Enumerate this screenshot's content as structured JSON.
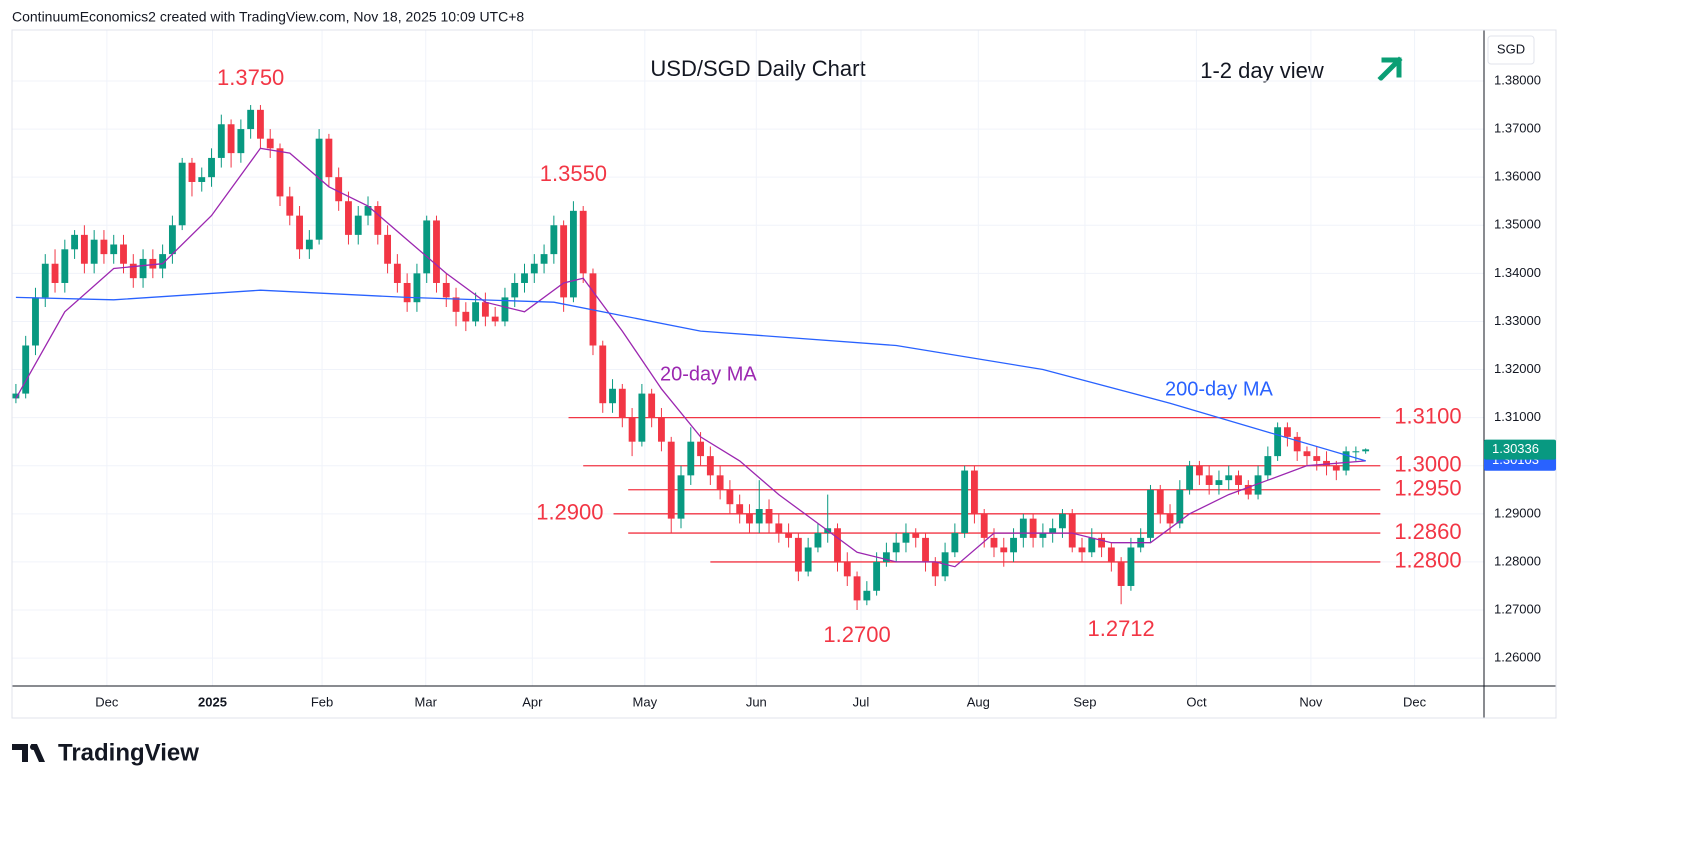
{
  "header": "ContinuumEconomics2 created with TradingView.com, Nov 18, 2025 10:09 UTC+8",
  "brand": "TradingView",
  "chart_data": {
    "type": "candlestick",
    "title": "USD/SGD Daily Chart",
    "subtitle": "1-2 day view",
    "currency": "SGD",
    "up_color": "#089981",
    "down_color": "#f23645",
    "xlim": [
      -0.4,
      150.1
    ],
    "xticks": [
      {
        "value": 9.3,
        "label": "Dec"
      },
      {
        "value": 20.1,
        "label": "2025"
      },
      {
        "value": 31.3,
        "label": "Feb"
      },
      {
        "value": 41.9,
        "label": "Mar"
      },
      {
        "value": 52.8,
        "label": "Apr"
      },
      {
        "value": 64.3,
        "label": "May"
      },
      {
        "value": 75.7,
        "label": "Jun"
      },
      {
        "value": 86.4,
        "label": "Jul"
      },
      {
        "value": 98.4,
        "label": "Aug"
      },
      {
        "value": 109.3,
        "label": "Sep"
      },
      {
        "value": 120.7,
        "label": "Oct"
      },
      {
        "value": 132.4,
        "label": "Nov"
      },
      {
        "value": 143.0,
        "label": "Dec"
      }
    ],
    "ylim": [
      1.2542,
      1.3906
    ],
    "yticks": [
      {
        "value": 1.26,
        "label": "1.26000"
      },
      {
        "value": 1.27,
        "label": "1.27000"
      },
      {
        "value": 1.28,
        "label": "1.28000"
      },
      {
        "value": 1.29,
        "label": "1.29000"
      },
      {
        "value": 1.3,
        "label": "1.30000"
      },
      {
        "value": 1.31,
        "label": "1.31000"
      },
      {
        "value": 1.32,
        "label": "1.32000"
      },
      {
        "value": 1.33,
        "label": "1.33000"
      },
      {
        "value": 1.34,
        "label": "1.34000"
      },
      {
        "value": 1.35,
        "label": "1.35000"
      },
      {
        "value": 1.36,
        "label": "1.36000"
      },
      {
        "value": 1.37,
        "label": "1.37000"
      },
      {
        "value": 1.38,
        "label": "1.38000"
      }
    ],
    "grid": true,
    "candles": [
      [
        1.314,
        1.317,
        1.313,
        1.315
      ],
      [
        1.315,
        1.327,
        1.314,
        1.325
      ],
      [
        1.325,
        1.337,
        1.323,
        1.335
      ],
      [
        1.335,
        1.344,
        1.333,
        1.342
      ],
      [
        1.342,
        1.345,
        1.336,
        1.338
      ],
      [
        1.338,
        1.347,
        1.336,
        1.345
      ],
      [
        1.345,
        1.349,
        1.343,
        1.348
      ],
      [
        1.348,
        1.35,
        1.34,
        1.342
      ],
      [
        1.342,
        1.349,
        1.34,
        1.347
      ],
      [
        1.347,
        1.349,
        1.342,
        1.344
      ],
      [
        1.344,
        1.348,
        1.342,
        1.346
      ],
      [
        1.346,
        1.348,
        1.34,
        1.342
      ],
      [
        1.342,
        1.344,
        1.337,
        1.339
      ],
      [
        1.339,
        1.345,
        1.337,
        1.343
      ],
      [
        1.343,
        1.345,
        1.339,
        1.341
      ],
      [
        1.341,
        1.346,
        1.339,
        1.344
      ],
      [
        1.344,
        1.352,
        1.342,
        1.35
      ],
      [
        1.35,
        1.364,
        1.349,
        1.363
      ],
      [
        1.363,
        1.364,
        1.356,
        1.359
      ],
      [
        1.359,
        1.362,
        1.357,
        1.36
      ],
      [
        1.36,
        1.366,
        1.358,
        1.364
      ],
      [
        1.364,
        1.373,
        1.362,
        1.371
      ],
      [
        1.371,
        1.372,
        1.362,
        1.365
      ],
      [
        1.365,
        1.372,
        1.363,
        1.37
      ],
      [
        1.37,
        1.375,
        1.368,
        1.374
      ],
      [
        1.374,
        1.375,
        1.366,
        1.368
      ],
      [
        1.368,
        1.37,
        1.364,
        1.366
      ],
      [
        1.366,
        1.367,
        1.354,
        1.356
      ],
      [
        1.356,
        1.358,
        1.35,
        1.352
      ],
      [
        1.352,
        1.354,
        1.343,
        1.345
      ],
      [
        1.345,
        1.349,
        1.343,
        1.347
      ],
      [
        1.347,
        1.37,
        1.346,
        1.368
      ],
      [
        1.368,
        1.369,
        1.358,
        1.36
      ],
      [
        1.36,
        1.362,
        1.353,
        1.355
      ],
      [
        1.355,
        1.357,
        1.346,
        1.348
      ],
      [
        1.348,
        1.354,
        1.346,
        1.352
      ],
      [
        1.352,
        1.356,
        1.35,
        1.354
      ],
      [
        1.354,
        1.355,
        1.346,
        1.348
      ],
      [
        1.348,
        1.35,
        1.34,
        1.342
      ],
      [
        1.342,
        1.344,
        1.336,
        1.338
      ],
      [
        1.338,
        1.34,
        1.332,
        1.334
      ],
      [
        1.334,
        1.342,
        1.332,
        1.34
      ],
      [
        1.34,
        1.352,
        1.338,
        1.351
      ],
      [
        1.351,
        1.352,
        1.336,
        1.338
      ],
      [
        1.338,
        1.34,
        1.333,
        1.335
      ],
      [
        1.335,
        1.337,
        1.329,
        1.332
      ],
      [
        1.332,
        1.334,
        1.328,
        1.33
      ],
      [
        1.33,
        1.336,
        1.329,
        1.334
      ],
      [
        1.334,
        1.336,
        1.329,
        1.331
      ],
      [
        1.331,
        1.333,
        1.329,
        1.33
      ],
      [
        1.33,
        1.337,
        1.329,
        1.335
      ],
      [
        1.335,
        1.34,
        1.333,
        1.338
      ],
      [
        1.338,
        1.342,
        1.336,
        1.34
      ],
      [
        1.34,
        1.344,
        1.338,
        1.342
      ],
      [
        1.342,
        1.346,
        1.34,
        1.344
      ],
      [
        1.344,
        1.352,
        1.342,
        1.35
      ],
      [
        1.35,
        1.351,
        1.332,
        1.335
      ],
      [
        1.335,
        1.355,
        1.334,
        1.353
      ],
      [
        1.353,
        1.354,
        1.338,
        1.34
      ],
      [
        1.34,
        1.341,
        1.323,
        1.325
      ],
      [
        1.325,
        1.326,
        1.311,
        1.313
      ],
      [
        1.313,
        1.318,
        1.311,
        1.316
      ],
      [
        1.316,
        1.317,
        1.308,
        1.31
      ],
      [
        1.31,
        1.312,
        1.302,
        1.305
      ],
      [
        1.305,
        1.317,
        1.304,
        1.315
      ],
      [
        1.315,
        1.316,
        1.308,
        1.31
      ],
      [
        1.31,
        1.312,
        1.303,
        1.305
      ],
      [
        1.305,
        1.306,
        1.286,
        1.289
      ],
      [
        1.289,
        1.3,
        1.287,
        1.298
      ],
      [
        1.298,
        1.308,
        1.296,
        1.305
      ],
      [
        1.305,
        1.307,
        1.3,
        1.302
      ],
      [
        1.302,
        1.304,
        1.296,
        1.298
      ],
      [
        1.298,
        1.3,
        1.293,
        1.295
      ],
      [
        1.295,
        1.297,
        1.29,
        1.292
      ],
      [
        1.292,
        1.294,
        1.288,
        1.29
      ],
      [
        1.29,
        1.292,
        1.286,
        1.288
      ],
      [
        1.288,
        1.297,
        1.286,
        1.291
      ],
      [
        1.291,
        1.293,
        1.286,
        1.288
      ],
      [
        1.288,
        1.29,
        1.284,
        1.286
      ],
      [
        1.286,
        1.288,
        1.283,
        1.285
      ],
      [
        1.285,
        1.286,
        1.276,
        1.278
      ],
      [
        1.278,
        1.285,
        1.277,
        1.283
      ],
      [
        1.283,
        1.288,
        1.282,
        1.286
      ],
      [
        1.286,
        1.294,
        1.284,
        1.287
      ],
      [
        1.287,
        1.288,
        1.278,
        1.28
      ],
      [
        1.28,
        1.282,
        1.275,
        1.277
      ],
      [
        1.277,
        1.278,
        1.27,
        1.272
      ],
      [
        1.272,
        1.276,
        1.271,
        1.274
      ],
      [
        1.274,
        1.282,
        1.273,
        1.28
      ],
      [
        1.28,
        1.284,
        1.279,
        1.282
      ],
      [
        1.282,
        1.286,
        1.28,
        1.284
      ],
      [
        1.284,
        1.288,
        1.282,
        1.286
      ],
      [
        1.286,
        1.287,
        1.283,
        1.285
      ],
      [
        1.285,
        1.286,
        1.278,
        1.28
      ],
      [
        1.28,
        1.281,
        1.275,
        1.277
      ],
      [
        1.277,
        1.284,
        1.276,
        1.282
      ],
      [
        1.282,
        1.288,
        1.281,
        1.286
      ],
      [
        1.286,
        1.3,
        1.285,
        1.299
      ],
      [
        1.299,
        1.3,
        1.288,
        1.29
      ],
      [
        1.29,
        1.291,
        1.283,
        1.285
      ],
      [
        1.285,
        1.287,
        1.281,
        1.283
      ],
      [
        1.283,
        1.285,
        1.279,
        1.282
      ],
      [
        1.282,
        1.287,
        1.28,
        1.285
      ],
      [
        1.285,
        1.29,
        1.283,
        1.289
      ],
      [
        1.289,
        1.29,
        1.283,
        1.285
      ],
      [
        1.285,
        1.288,
        1.283,
        1.286
      ],
      [
        1.286,
        1.289,
        1.284,
        1.287
      ],
      [
        1.287,
        1.291,
        1.285,
        1.29
      ],
      [
        1.29,
        1.291,
        1.282,
        1.283
      ],
      [
        1.283,
        1.285,
        1.28,
        1.282
      ],
      [
        1.282,
        1.287,
        1.281,
        1.285
      ],
      [
        1.285,
        1.286,
        1.281,
        1.283
      ],
      [
        1.283,
        1.284,
        1.278,
        1.28
      ],
      [
        1.28,
        1.281,
        1.2712,
        1.275
      ],
      [
        1.275,
        1.285,
        1.274,
        1.283
      ],
      [
        1.283,
        1.287,
        1.282,
        1.285
      ],
      [
        1.285,
        1.296,
        1.284,
        1.295
      ],
      [
        1.295,
        1.296,
        1.288,
        1.29
      ],
      [
        1.29,
        1.292,
        1.286,
        1.288
      ],
      [
        1.288,
        1.297,
        1.287,
        1.295
      ],
      [
        1.295,
        1.301,
        1.294,
        1.3
      ],
      [
        1.3,
        1.301,
        1.296,
        1.298
      ],
      [
        1.298,
        1.3,
        1.294,
        1.296
      ],
      [
        1.296,
        1.299,
        1.294,
        1.297
      ],
      [
        1.297,
        1.3,
        1.295,
        1.298
      ],
      [
        1.298,
        1.299,
        1.294,
        1.296
      ],
      [
        1.296,
        1.297,
        1.293,
        1.294
      ],
      [
        1.294,
        1.3,
        1.293,
        1.298
      ],
      [
        1.298,
        1.304,
        1.297,
        1.302
      ],
      [
        1.302,
        1.309,
        1.301,
        1.308
      ],
      [
        1.308,
        1.309,
        1.304,
        1.306
      ],
      [
        1.306,
        1.307,
        1.301,
        1.303
      ],
      [
        1.303,
        1.304,
        1.3,
        1.302
      ],
      [
        1.302,
        1.304,
        1.299,
        1.301
      ],
      [
        1.301,
        1.303,
        1.298,
        1.3
      ],
      [
        1.3,
        1.301,
        1.297,
        1.299
      ],
      [
        1.299,
        1.304,
        1.298,
        1.303
      ],
      [
        1.303,
        1.304,
        1.301,
        1.303
      ],
      [
        1.303,
        1.3036,
        1.3025,
        1.3034
      ]
    ],
    "series": [
      {
        "name": "20-day MA",
        "color": "#9c27b0",
        "x": [
          0,
          5,
          10,
          15,
          20,
          25,
          28,
          32,
          36,
          40,
          44,
          48,
          52,
          56,
          58,
          62,
          66,
          70,
          74,
          78,
          82,
          86,
          90,
          94,
          96,
          100,
          104,
          108,
          112,
          116,
          120,
          124,
          128,
          132,
          138
        ],
        "values": [
          1.314,
          1.332,
          1.341,
          1.342,
          1.352,
          1.366,
          1.365,
          1.358,
          1.354,
          1.347,
          1.34,
          1.334,
          1.332,
          1.338,
          1.339,
          1.328,
          1.316,
          1.306,
          1.301,
          1.294,
          1.288,
          1.282,
          1.28,
          1.28,
          1.279,
          1.286,
          1.286,
          1.286,
          1.284,
          1.284,
          1.29,
          1.294,
          1.297,
          1.3,
          1.301
        ]
      },
      {
        "name": "200-day MA",
        "color": "#2962ff",
        "x": [
          0,
          10,
          25,
          40,
          55,
          70,
          90,
          105,
          118,
          128,
          138
        ],
        "values": [
          1.335,
          1.3345,
          1.3365,
          1.335,
          1.334,
          1.328,
          1.325,
          1.32,
          1.313,
          1.307,
          1.301
        ]
      }
    ],
    "levels": [
      {
        "value": 1.31,
        "label": "1.3100",
        "start": 56.5
      },
      {
        "value": 1.3,
        "label": "1.3000",
        "start": 58
      },
      {
        "value": 1.295,
        "label": "1.2950",
        "start": 62.6
      },
      {
        "value": 1.29,
        "label": "1.2900",
        "start": 61.1,
        "side": "left"
      },
      {
        "value": 1.286,
        "label": "1.2860",
        "start": 62.6
      },
      {
        "value": 1.28,
        "label": "1.2800",
        "start": 71
      }
    ],
    "level_end": 139.5,
    "annotations": [
      {
        "value": 1.375,
        "label": "1.3750",
        "at": 24,
        "pos": "above"
      },
      {
        "value": 1.355,
        "label": "1.3550",
        "at": 57,
        "pos": "above"
      },
      {
        "value": 1.27,
        "label": "1.2700",
        "at": 86,
        "pos": "below"
      },
      {
        "value": 1.2712,
        "label": "1.2712",
        "at": 113,
        "pos": "below"
      }
    ],
    "annotation_color": "#f23645",
    "price_tags": [
      {
        "value": 1.30103,
        "color": "#2962ff"
      },
      {
        "value": 1.30336,
        "color": "#089981"
      }
    ]
  }
}
